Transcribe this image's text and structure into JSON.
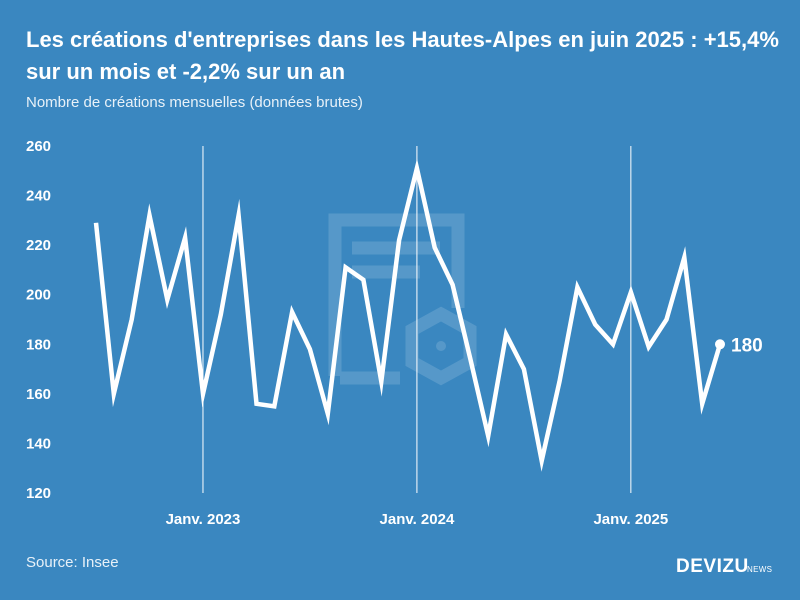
{
  "chart_data": {
    "type": "line",
    "title": "Les créations d'entreprises dans les Hautes-Alpes en juin 2025 : +15,4% sur un mois et -2,2% sur un an",
    "subtitle": "Nombre de créations mensuelles (données brutes)",
    "ylim": [
      120,
      260
    ],
    "yticks": [
      120,
      140,
      160,
      180,
      200,
      220,
      240,
      260
    ],
    "x_labels": [
      "Janv. 2023",
      "Janv. 2024",
      "Janv. 2025"
    ],
    "x_range": [
      "2022-07",
      "2025-06"
    ],
    "grid": "vertical lines at January",
    "series": [
      {
        "x": [
          "2022-07",
          "2022-08",
          "2022-09",
          "2022-10",
          "2022-11",
          "2022-12",
          "2023-01",
          "2023-02",
          "2023-03",
          "2023-04",
          "2023-05",
          "2023-06",
          "2023-07",
          "2023-08",
          "2023-09",
          "2023-10",
          "2023-11",
          "2023-12",
          "2024-01",
          "2024-02",
          "2024-03",
          "2024-04",
          "2024-05",
          "2024-06",
          "2024-07",
          "2024-08",
          "2024-09",
          "2024-10",
          "2024-11",
          "2024-12",
          "2025-01",
          "2025-02",
          "2025-03",
          "2025-04",
          "2025-05",
          "2025-06"
        ],
        "values": [
          229,
          160,
          190,
          232,
          198,
          223,
          160,
          192,
          232,
          156,
          155,
          193,
          178,
          152,
          211,
          206,
          165,
          222,
          251,
          219,
          204,
          174,
          143,
          184,
          170,
          133,
          165,
          203,
          188,
          180,
          201,
          179,
          190,
          215,
          156,
          180
        ]
      }
    ],
    "last_value_label": "180",
    "line_color": "#ffffff",
    "background_color": "#3a87c0"
  },
  "footer": {
    "source": "Source: Insee",
    "brand": "DEVIZU",
    "brand_sub": "NEWS"
  }
}
